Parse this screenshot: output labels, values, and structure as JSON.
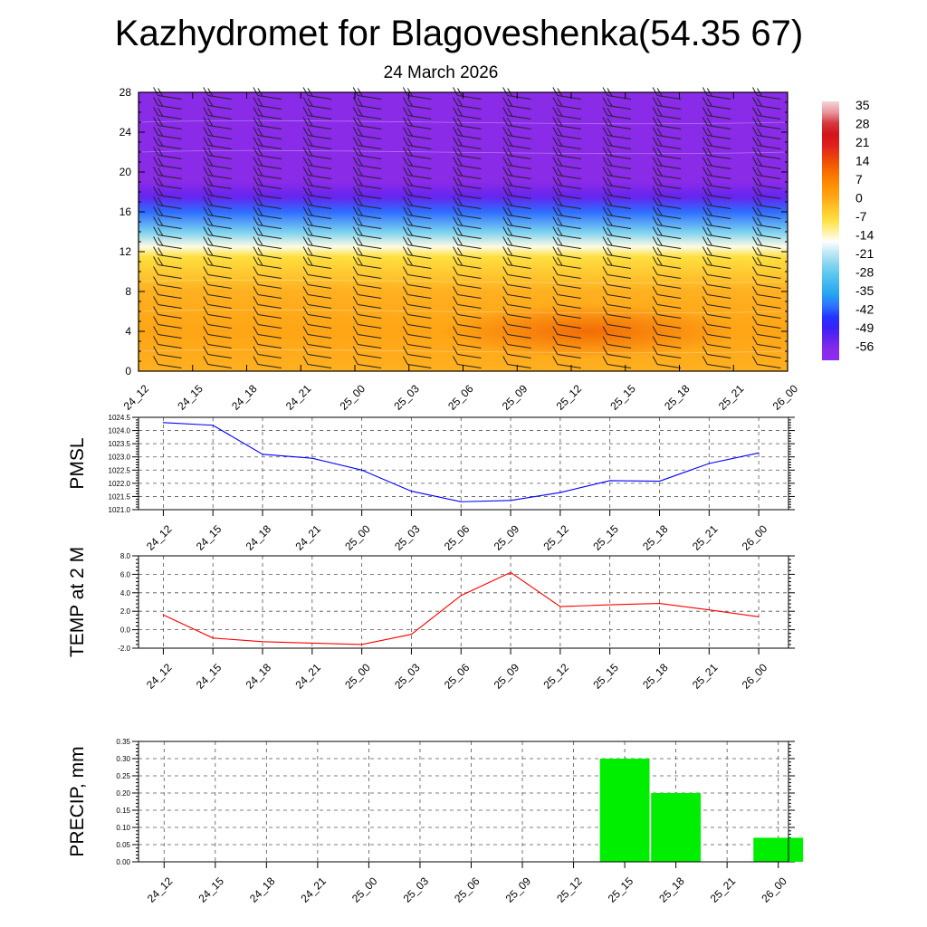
{
  "title": "Kazhydromet for Blagoveshenka(54.35 67)",
  "subtitle": "24 March 2026",
  "time_labels": [
    "24_12",
    "24_15",
    "24_18",
    "24_21",
    "25_00",
    "25_03",
    "25_06",
    "25_09",
    "25_12",
    "25_15",
    "25_18",
    "25_21",
    "26_00"
  ],
  "chart_data": [
    {
      "type": "heatmap",
      "name": "vertical temperature/wind cross-section",
      "xlabel": "",
      "ylabel": "",
      "x": [
        "24_12",
        "24_15",
        "24_18",
        "24_21",
        "25_00",
        "25_03",
        "25_06",
        "25_09",
        "25_12",
        "25_15",
        "25_18",
        "25_21",
        "26_00"
      ],
      "yticks": [
        0,
        4,
        8,
        12,
        16,
        20,
        24,
        28
      ],
      "ylim": [
        0,
        28
      ],
      "temperature_bands": [
        {
          "y": 0,
          "value": 0
        },
        {
          "y": 4,
          "value": 2
        },
        {
          "y": 8,
          "value": 0
        },
        {
          "y": 11.5,
          "value": -7
        },
        {
          "y": 12.5,
          "value": -14
        },
        {
          "y": 14,
          "value": -25
        },
        {
          "y": 16,
          "value": -40
        },
        {
          "y": 17.5,
          "value": -52
        },
        {
          "y": 19,
          "value": -56
        },
        {
          "y": 28,
          "value": -56
        }
      ],
      "warm_core": {
        "x_from": "25_06",
        "x_to": "25_21",
        "y_from": 2,
        "y_to": 6,
        "value": 5
      },
      "colorbar": {
        "labels": [
          "35",
          "28",
          "21",
          "14",
          "7",
          "0",
          "-7",
          "-14",
          "-21",
          "-28",
          "-35",
          "-42",
          "-49",
          "-56"
        ],
        "min": -60,
        "max": 38
      },
      "wind_barbs": "westerly wind barbs at every 1 km level for each time step"
    },
    {
      "type": "line",
      "ylabel": "PMSL",
      "x": [
        "24_12",
        "24_15",
        "24_18",
        "24_21",
        "25_00",
        "25_03",
        "25_06",
        "25_09",
        "25_12",
        "25_15",
        "25_18",
        "25_21",
        "26_00"
      ],
      "values": [
        1024.3,
        1024.2,
        1023.1,
        1022.95,
        1022.5,
        1021.7,
        1021.3,
        1021.35,
        1021.65,
        1022.1,
        1022.08,
        1022.75,
        1023.15
      ],
      "ylim": [
        1021.0,
        1024.5
      ],
      "yticks": [
        "1021.0",
        "1021.5",
        "1022.0",
        "1022.5",
        "1023.0",
        "1023.5",
        "1024.0",
        "1024.5"
      ],
      "color": "#0000ff"
    },
    {
      "type": "line",
      "ylabel": "TEMP at 2 M",
      "x": [
        "24_12",
        "24_15",
        "24_18",
        "24_21",
        "25_00",
        "25_03",
        "25_06",
        "25_09",
        "25_12",
        "25_15",
        "25_18",
        "25_21",
        "26_00"
      ],
      "values": [
        1.6,
        -0.9,
        -1.3,
        -1.45,
        -1.6,
        -0.5,
        3.7,
        6.2,
        2.5,
        2.7,
        2.85,
        2.15,
        1.4
      ],
      "ylim": [
        -2.0,
        8.0
      ],
      "yticks": [
        "-2.0",
        "0.0",
        "2.0",
        "4.0",
        "6.0",
        "8.0"
      ],
      "color": "#ff0000"
    },
    {
      "type": "bar",
      "ylabel": "PRECIP, mm",
      "x": [
        "24_12",
        "24_15",
        "24_18",
        "24_21",
        "25_00",
        "25_03",
        "25_06",
        "25_09",
        "25_12",
        "25_15",
        "25_18",
        "25_21",
        "26_00"
      ],
      "values": [
        0,
        0,
        0,
        0,
        0,
        0,
        0,
        0,
        0,
        0.3,
        0.2,
        0,
        0.07
      ],
      "ylim": [
        0,
        0.35
      ],
      "yticks": [
        "0.00",
        "0.05",
        "0.10",
        "0.15",
        "0.20",
        "0.25",
        "0.30",
        "0.35"
      ],
      "color": "#00ee00"
    }
  ]
}
